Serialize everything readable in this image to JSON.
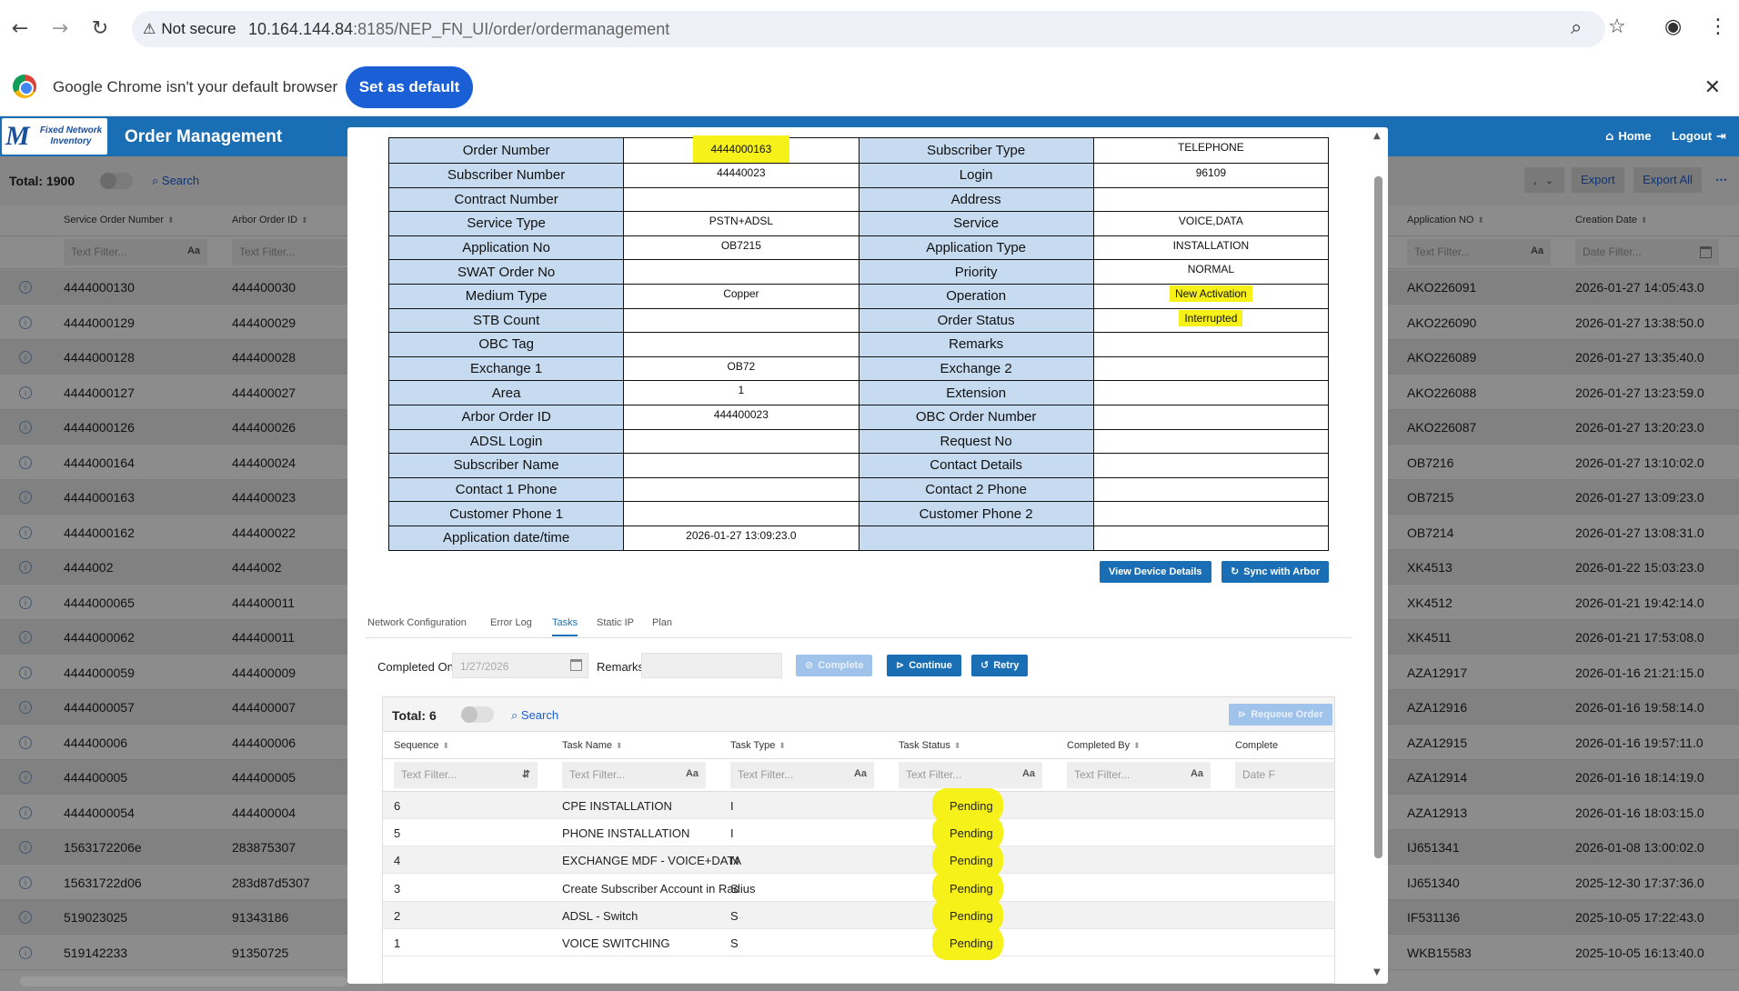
{
  "browser": {
    "security_label": "Not secure",
    "url_host": "10.164.144.84",
    "url_rest": ":8185/NEP_FN_UI/order/ordermanagement",
    "infobar_text": "Google Chrome isn't your default browser",
    "set_default_label": "Set as default"
  },
  "app": {
    "logo_text": "Fixed Network Inventory",
    "title": "Order Management",
    "home_label": "Home",
    "logout_label": "Logout"
  },
  "list": {
    "total": "Total: 1900",
    "search_label": "Search",
    "select_value": ",",
    "export_label": "Export",
    "export_all_label": "Export All",
    "columns": [
      "Service Order Number",
      "Arbor Order ID",
      "Application NO",
      "Creation Date"
    ],
    "text_filter": "Text Filter...",
    "date_filter": "Date Filter...",
    "rows": [
      {
        "son": "4444000130",
        "arbor": "444400030",
        "app": "AKO226091",
        "date": "2026-01-27 14:05:43.0"
      },
      {
        "son": "4444000129",
        "arbor": "444400029",
        "app": "AKO226090",
        "date": "2026-01-27 13:38:50.0"
      },
      {
        "son": "4444000128",
        "arbor": "444400028",
        "app": "AKO226089",
        "date": "2026-01-27 13:35:40.0"
      },
      {
        "son": "4444000127",
        "arbor": "444400027",
        "app": "AKO226088",
        "date": "2026-01-27 13:23:59.0"
      },
      {
        "son": "4444000126",
        "arbor": "444400026",
        "app": "AKO226087",
        "date": "2026-01-27 13:20:23.0"
      },
      {
        "son": "4444000164",
        "arbor": "444400024",
        "app": "OB7216",
        "date": "2026-01-27 13:10:02.0"
      },
      {
        "son": "4444000163",
        "arbor": "444400023",
        "app": "OB7215",
        "date": "2026-01-27 13:09:23.0"
      },
      {
        "son": "4444000162",
        "arbor": "444400022",
        "app": "OB7214",
        "date": "2026-01-27 13:08:31.0"
      },
      {
        "son": "4444002",
        "arbor": "4444002",
        "app": "XK4513",
        "date": "2026-01-22 15:03:23.0"
      },
      {
        "son": "4444000065",
        "arbor": "444400011",
        "app": "XK4512",
        "date": "2026-01-21 19:42:14.0"
      },
      {
        "son": "4444000062",
        "arbor": "444400011",
        "app": "XK4511",
        "date": "2026-01-21 17:53:08.0"
      },
      {
        "son": "4444000059",
        "arbor": "444400009",
        "app": "AZA12917",
        "date": "2026-01-16 21:21:15.0"
      },
      {
        "son": "4444000057",
        "arbor": "444400007",
        "app": "AZA12916",
        "date": "2026-01-16 19:58:14.0"
      },
      {
        "son": "444400006",
        "arbor": "444400006",
        "app": "AZA12915",
        "date": "2026-01-16 19:57:11.0"
      },
      {
        "son": "444400005",
        "arbor": "444400005",
        "app": "AZA12914",
        "date": "2026-01-16 18:14:19.0"
      },
      {
        "son": "4444000054",
        "arbor": "444400004",
        "app": "AZA12913",
        "date": "2026-01-16 18:03:15.0"
      },
      {
        "son": "1563172206e",
        "arbor": "283875307",
        "app": "IJ651341",
        "date": "2026-01-08 13:00:02.0"
      },
      {
        "son": "15631722d06",
        "arbor": "283d87d5307",
        "app": "IJ651340",
        "date": "2025-12-30 17:37:36.0"
      },
      {
        "son": "519023025",
        "arbor": "91343186",
        "app": "IF531136",
        "date": "2025-10-05 17:22:43.0"
      },
      {
        "son": "519142233",
        "arbor": "91350725",
        "app": "WKB15583",
        "date": "2025-10-05 16:13:40.0"
      }
    ]
  },
  "detail": {
    "rows": [
      {
        "l1": "Order Number",
        "v1": "4444000163",
        "l2": "Subscriber Type",
        "v2": "TELEPHONE"
      },
      {
        "l1": "Subscriber Number",
        "v1": "44440023",
        "l2": "Login",
        "v2": "96109"
      },
      {
        "l1": "Contract Number",
        "v1": "",
        "l2": "Address",
        "v2": ""
      },
      {
        "l1": "Service Type",
        "v1": "PSTN+ADSL",
        "l2": "Service",
        "v2": "VOICE,DATA"
      },
      {
        "l1": "Application No",
        "v1": "OB7215",
        "l2": "Application Type",
        "v2": "INSTALLATION"
      },
      {
        "l1": "SWAT Order No",
        "v1": "",
        "l2": "Priority",
        "v2": "NORMAL"
      },
      {
        "l1": "Medium Type",
        "v1": "Copper",
        "l2": "Operation",
        "v2": "New Activation"
      },
      {
        "l1": "STB Count",
        "v1": "",
        "l2": "Order Status",
        "v2": "Interrupted"
      },
      {
        "l1": "OBC Tag",
        "v1": "",
        "l2": "Remarks",
        "v2": ""
      },
      {
        "l1": "Exchange 1",
        "v1": "OB72",
        "l2": "Exchange 2",
        "v2": ""
      },
      {
        "l1": "Area",
        "v1": "1",
        "l2": "Extension",
        "v2": ""
      },
      {
        "l1": "Arbor Order ID",
        "v1": "444400023",
        "l2": "OBC Order Number",
        "v2": ""
      },
      {
        "l1": "ADSL Login",
        "v1": "",
        "l2": "Request No",
        "v2": ""
      },
      {
        "l1": "Subscriber Name",
        "v1": "",
        "l2": "Contact Details",
        "v2": ""
      },
      {
        "l1": "Contact 1 Phone",
        "v1": "",
        "l2": "Contact 2 Phone",
        "v2": ""
      },
      {
        "l1": "Customer Phone 1",
        "v1": "",
        "l2": "Customer Phone 2",
        "v2": ""
      },
      {
        "l1": "Application date/time",
        "v1": "2026-01-27 13:09:23.0",
        "l2": "",
        "v2": ""
      }
    ],
    "view_device_label": "View Device Details",
    "sync_label": "Sync with Arbor"
  },
  "tabs": [
    "Network Configuration",
    "Error Log",
    "Tasks",
    "Static IP",
    "Plan"
  ],
  "task_form": {
    "completed_on_label": "Completed On *",
    "completed_on_value": "1/27/2026",
    "remarks_label": "Remarks",
    "complete_label": "Complete",
    "continue_label": "Continue",
    "retry_label": "Retry"
  },
  "tasks": {
    "total": "Total: 6",
    "search_label": "Search",
    "requeue_label": "Requeue Order",
    "columns": [
      "Sequence",
      "Task Name",
      "Task Type",
      "Task Status",
      "Completed By",
      "Complete"
    ],
    "text_filter": "Text Filter...",
    "date_filter": "Date F",
    "rows": [
      {
        "seq": "6",
        "name": "CPE INSTALLATION",
        "type": "I",
        "status": "Pending"
      },
      {
        "seq": "5",
        "name": "PHONE INSTALLATION",
        "type": "I",
        "status": "Pending"
      },
      {
        "seq": "4",
        "name": "EXCHANGE MDF - VOICE+DATA",
        "type": "N",
        "status": "Pending"
      },
      {
        "seq": "3",
        "name": "Create Subscriber Account in Radius",
        "type": "S",
        "status": "Pending"
      },
      {
        "seq": "2",
        "name": "ADSL - Switch",
        "type": "S",
        "status": "Pending"
      },
      {
        "seq": "1",
        "name": "VOICE SWITCHING",
        "type": "S",
        "status": "Pending"
      }
    ]
  },
  "colors": {
    "header_blue": "#1a6fb4",
    "label_blue": "#c6daf0",
    "highlight": "#f7f11a"
  }
}
